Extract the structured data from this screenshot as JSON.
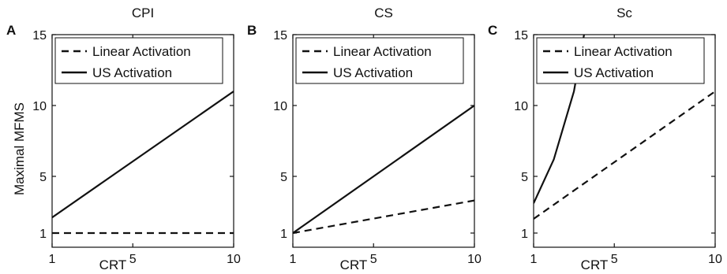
{
  "chart_data": [
    {
      "type": "line",
      "panel_letter": "A",
      "title": "CPI",
      "xlabel": "CRT",
      "ylabel": "Maximal MFMS",
      "xlim": [
        1,
        10
      ],
      "ylim": [
        0,
        15
      ],
      "xticks": [
        1,
        5,
        10
      ],
      "yticks": [
        1,
        5,
        10,
        15
      ],
      "legend": {
        "position": "top-left",
        "entries": [
          "Linear Activation",
          "US Activation"
        ]
      },
      "series": [
        {
          "name": "Linear Activation",
          "style": "dashed",
          "x": [
            1,
            10
          ],
          "y": [
            1,
            1
          ]
        },
        {
          "name": "US Activation",
          "style": "solid",
          "x": [
            1,
            10
          ],
          "y": [
            2.1,
            11
          ]
        }
      ]
    },
    {
      "type": "line",
      "panel_letter": "B",
      "title": "CS",
      "xlabel": "CRT",
      "ylabel": "",
      "xlim": [
        1,
        10
      ],
      "ylim": [
        0,
        15
      ],
      "xticks": [
        1,
        5,
        10
      ],
      "yticks": [
        1,
        5,
        10,
        15
      ],
      "legend": {
        "position": "top-left",
        "entries": [
          "Linear Activation",
          "US Activation"
        ]
      },
      "series": [
        {
          "name": "Linear Activation",
          "style": "dashed",
          "x": [
            1,
            10
          ],
          "y": [
            1,
            3.3
          ]
        },
        {
          "name": "US Activation",
          "style": "solid",
          "x": [
            1,
            10
          ],
          "y": [
            1,
            10
          ]
        }
      ]
    },
    {
      "type": "line",
      "panel_letter": "C",
      "title": "Sc",
      "xlabel": "CRT",
      "ylabel": "",
      "xlim": [
        1,
        10
      ],
      "ylim": [
        0,
        15
      ],
      "xticks": [
        1,
        5,
        10
      ],
      "yticks": [
        1,
        5,
        10,
        15
      ],
      "legend": {
        "position": "top-left",
        "entries": [
          "Linear Activation",
          "US Activation"
        ]
      },
      "series": [
        {
          "name": "Linear Activation",
          "style": "dashed",
          "x": [
            1,
            10
          ],
          "y": [
            2,
            11
          ]
        },
        {
          "name": "US Activation",
          "style": "solid",
          "x": [
            1,
            2,
            3,
            3.5
          ],
          "y": [
            3.1,
            6.2,
            11,
            15
          ]
        }
      ]
    }
  ]
}
